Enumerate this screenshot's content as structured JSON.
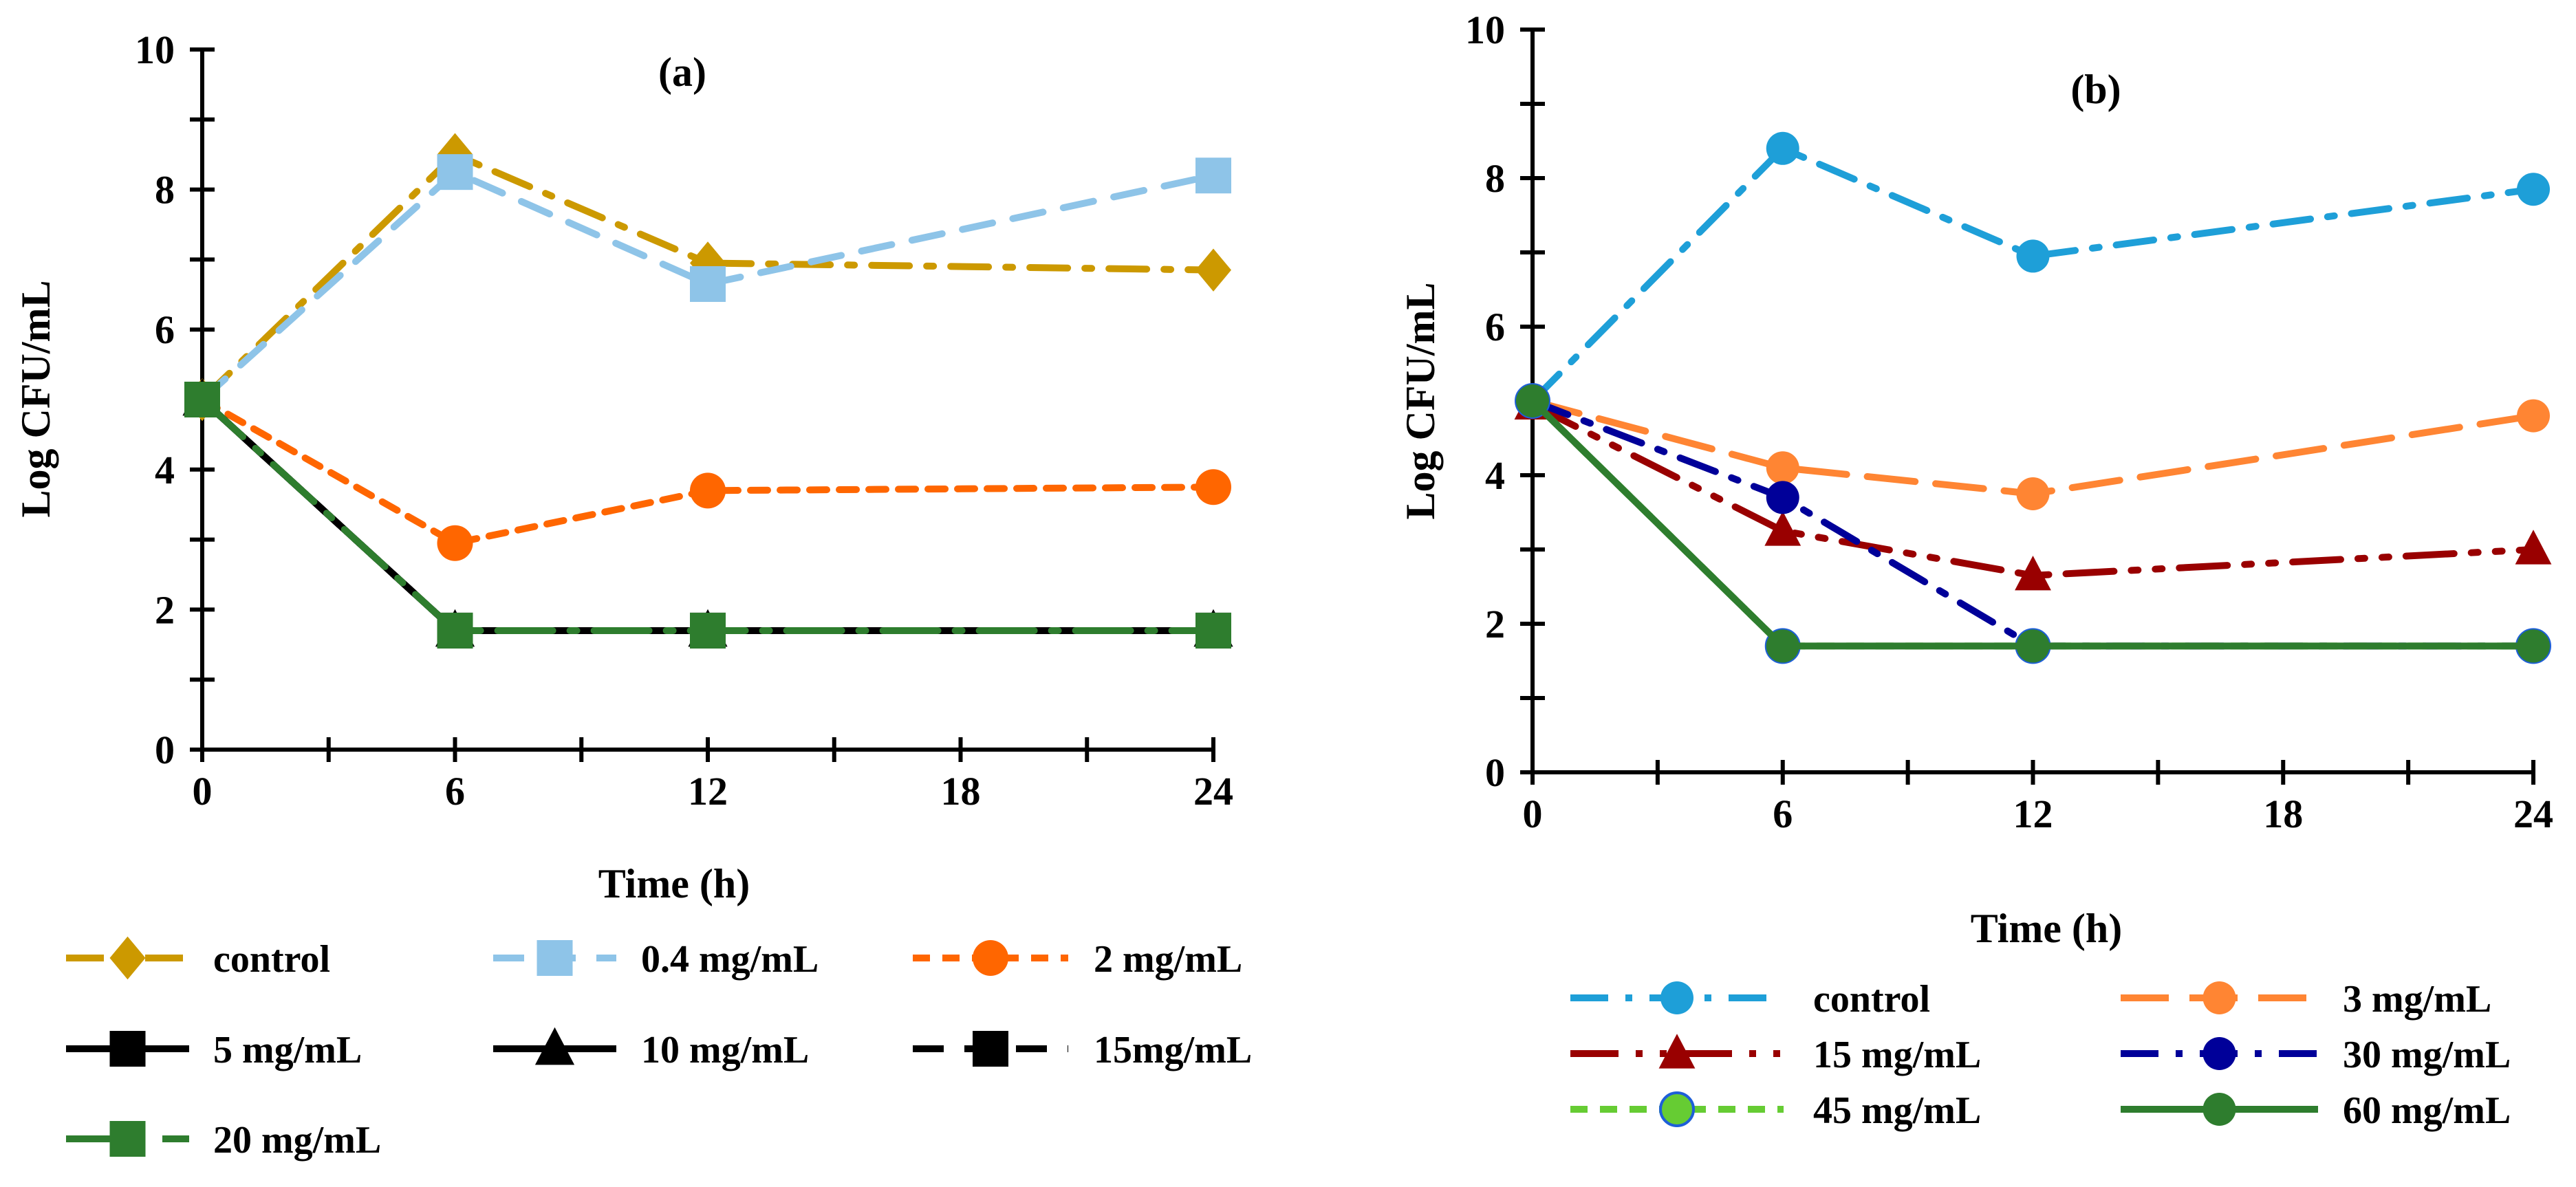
{
  "chart_data": [
    {
      "type": "line",
      "title": "(a)",
      "xlabel": "Time (h)",
      "ylabel": "Log CFU/mL",
      "x": [
        0,
        6,
        12,
        24
      ],
      "xlim": [
        0,
        24
      ],
      "ylim": [
        0,
        10
      ],
      "xticks": [
        0,
        6,
        12,
        18,
        24
      ],
      "yticks": [
        0,
        2,
        4,
        6,
        8,
        10
      ],
      "grid": false,
      "legend_placement": "bottom",
      "series": [
        {
          "name": "control",
          "values": [
            5,
            8.5,
            6.95,
            6.85
          ],
          "color": "#CC9900",
          "marker": "diamond",
          "dash": "dashdot"
        },
        {
          "name": "0.4 mg/mL",
          "values": [
            5,
            8.25,
            6.65,
            8.2
          ],
          "color": "#8EC4E8",
          "marker": "square",
          "dash": "dash"
        },
        {
          "name": "2 mg/mL",
          "values": [
            5,
            2.95,
            3.7,
            3.75
          ],
          "color": "#FF6600",
          "marker": "circle",
          "dash": "shortdash"
        },
        {
          "name": "5 mg/mL",
          "values": [
            5,
            1.7,
            1.7,
            1.7
          ],
          "color": "#000000",
          "marker": "square",
          "dash": "solid"
        },
        {
          "name": "10 mg/mL",
          "values": [
            5,
            1.7,
            1.7,
            1.7
          ],
          "color": "#000000",
          "marker": "triangle",
          "dash": "solid"
        },
        {
          "name": "15mg/mL",
          "values": [
            5,
            1.7,
            1.7,
            1.7
          ],
          "color": "#000000",
          "marker": "square",
          "dash": "dash"
        },
        {
          "name": "20 mg/mL",
          "values": [
            5,
            1.7,
            1.7,
            1.7
          ],
          "color": "#2E7D2E",
          "marker": "square",
          "dash": "longdashdot"
        }
      ]
    },
    {
      "type": "line",
      "title": "(b)",
      "xlabel": "Time (h)",
      "ylabel": "Log CFU/mL",
      "x": [
        0,
        6,
        12,
        24
      ],
      "xlim": [
        0,
        24
      ],
      "ylim": [
        0,
        10
      ],
      "xticks": [
        0,
        6,
        12,
        18,
        24
      ],
      "yticks": [
        0,
        2,
        4,
        6,
        8,
        10
      ],
      "grid": false,
      "legend_placement": "bottom",
      "series": [
        {
          "name": "control",
          "values": [
            5,
            8.4,
            6.95,
            7.85
          ],
          "color": "#1E9FD8",
          "marker": "circle",
          "dash": "dashdot"
        },
        {
          "name": "3 mg/mL",
          "values": [
            5,
            4.1,
            3.75,
            4.8
          ],
          "color": "#FF8533",
          "marker": "circle",
          "dash": "longdash"
        },
        {
          "name": "15 mg/mL",
          "values": [
            4.95,
            3.25,
            2.65,
            3.0
          ],
          "color": "#990000",
          "marker": "triangle",
          "dash": "longdashdotdot"
        },
        {
          "name": "30 mg/mL",
          "values": [
            5,
            3.7,
            1.7,
            1.7
          ],
          "color": "#000099",
          "marker": "circle",
          "dash": "dashdot"
        },
        {
          "name": "45 mg/mL",
          "values": [
            5,
            1.7,
            1.7,
            1.7
          ],
          "color": "#66CC33",
          "stroke": "#1E5FD8",
          "marker": "circle",
          "dash": "shortdash"
        },
        {
          "name": "60 mg/mL",
          "values": [
            5,
            1.7,
            1.7,
            1.7
          ],
          "color": "#2E7D2E",
          "marker": "circle",
          "dash": "solid"
        }
      ]
    }
  ]
}
